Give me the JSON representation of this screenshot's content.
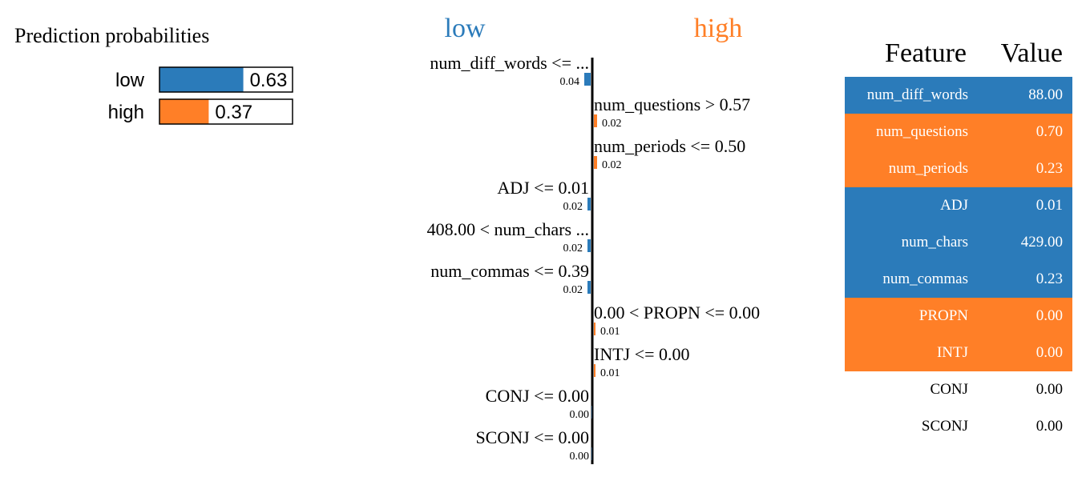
{
  "prediction": {
    "title": "Prediction probabilities",
    "classes": [
      {
        "label": "low",
        "value": 0.63,
        "display": "0.63",
        "color": "#2b7bba"
      },
      {
        "label": "high",
        "value": 0.37,
        "display": "0.37",
        "color": "#ff7f27"
      }
    ]
  },
  "chart_data": {
    "type": "bar",
    "orientation": "horizontal",
    "left_label": "low",
    "right_label": "high",
    "left_color": "#2b7bba",
    "right_color": "#ff7f27",
    "categories": [
      "num_diff_words <= ...",
      "num_questions > 0.57",
      "num_periods <= 0.50",
      "ADJ <= 0.01",
      "408.00 < num_chars ...",
      "num_commas <= 0.39",
      "0.00 < PROPN <= 0.00",
      "INTJ <= 0.00",
      "CONJ <= 0.00",
      "SCONJ <= 0.00"
    ],
    "values": [
      -0.04,
      0.02,
      0.02,
      -0.02,
      -0.02,
      -0.02,
      0.01,
      0.01,
      0.0,
      0.0
    ],
    "labels": [
      "0.04",
      "0.02",
      "0.02",
      "0.02",
      "0.02",
      "0.02",
      "0.01",
      "0.01",
      "0.00",
      "0.00"
    ]
  },
  "feature_table": {
    "headers": [
      "Feature",
      "Value"
    ],
    "rows": [
      {
        "feature": "num_diff_words",
        "value": "88.00",
        "class": "low"
      },
      {
        "feature": "num_questions",
        "value": "0.70",
        "class": "high"
      },
      {
        "feature": "num_periods",
        "value": "0.23",
        "class": "high"
      },
      {
        "feature": "ADJ",
        "value": "0.01",
        "class": "low"
      },
      {
        "feature": "num_chars",
        "value": "429.00",
        "class": "low"
      },
      {
        "feature": "num_commas",
        "value": "0.23",
        "class": "low"
      },
      {
        "feature": "PROPN",
        "value": "0.00",
        "class": "high"
      },
      {
        "feature": "INTJ",
        "value": "0.00",
        "class": "high"
      },
      {
        "feature": "CONJ",
        "value": "0.00",
        "class": "none"
      },
      {
        "feature": "SCONJ",
        "value": "0.00",
        "class": "none"
      }
    ]
  }
}
